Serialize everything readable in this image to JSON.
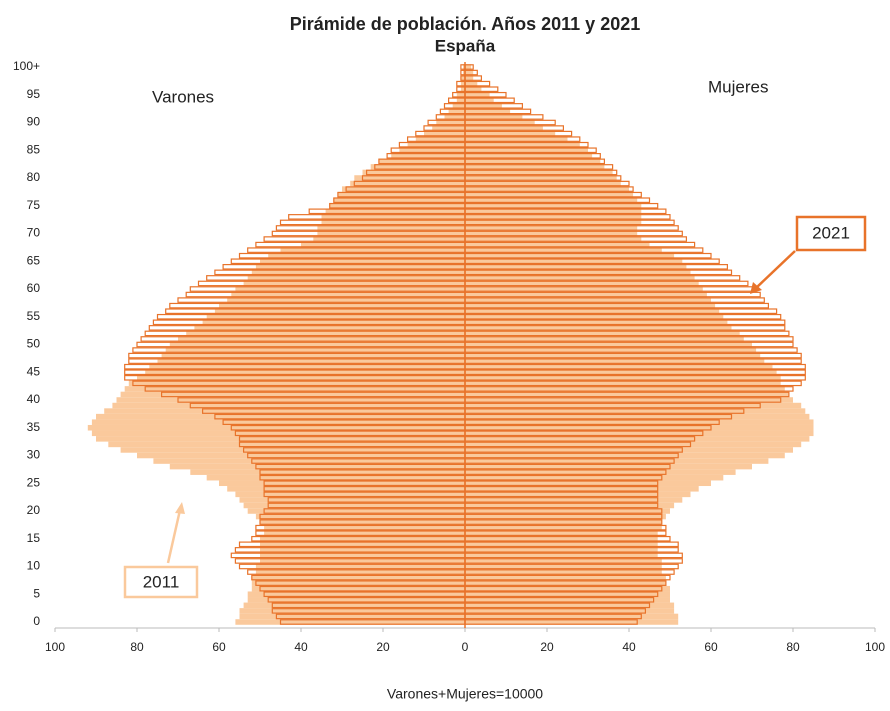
{
  "chart_data": {
    "type": "pyramid",
    "title": "Pirámide de población. Años 2011 y 2021",
    "subtitle": "España",
    "left_label": "Varones",
    "right_label": "Mujeres",
    "x_label": "Varones+Mujeres=10000",
    "categories": [
      "0",
      null,
      null,
      null,
      null,
      "5",
      null,
      null,
      null,
      null,
      "10",
      null,
      null,
      null,
      null,
      "15",
      null,
      null,
      null,
      null,
      "20",
      null,
      null,
      null,
      null,
      "25",
      null,
      null,
      null,
      null,
      "30",
      null,
      null,
      null,
      null,
      "35",
      null,
      null,
      null,
      null,
      "40",
      null,
      null,
      null,
      null,
      "45",
      null,
      null,
      null,
      null,
      "50",
      null,
      null,
      null,
      null,
      "55",
      null,
      null,
      null,
      null,
      "60",
      null,
      null,
      null,
      null,
      "65",
      null,
      null,
      null,
      null,
      "70",
      null,
      null,
      null,
      null,
      "75",
      null,
      null,
      null,
      null,
      "80",
      null,
      null,
      null,
      null,
      "85",
      null,
      null,
      null,
      null,
      "90",
      null,
      null,
      null,
      null,
      "95",
      null,
      null,
      null,
      null,
      "100+"
    ],
    "xlim": [
      0,
      100
    ],
    "xticks": [
      0,
      20,
      40,
      60,
      80,
      100
    ],
    "series": [
      {
        "name": "2011",
        "color": "#fac99c",
        "style": "filled",
        "male": [
          56,
          55,
          55,
          54,
          53,
          53,
          52,
          52,
          52,
          51,
          51,
          50,
          50,
          50,
          50,
          50,
          49,
          49,
          50,
          51,
          53,
          54,
          55,
          56,
          58,
          60,
          63,
          67,
          72,
          76,
          80,
          84,
          87,
          90,
          91,
          92,
          91,
          90,
          88,
          86,
          85,
          84,
          83,
          82,
          80,
          78,
          77,
          75,
          74,
          73,
          72,
          70,
          68,
          66,
          64,
          63,
          61,
          60,
          58,
          57,
          56,
          54,
          53,
          52,
          51,
          50,
          48,
          45,
          40,
          37,
          36,
          36,
          35,
          35,
          34,
          33,
          32,
          31,
          30,
          28,
          27,
          25,
          23,
          21,
          18,
          16,
          14,
          12,
          10,
          8,
          7,
          5,
          4,
          3,
          2,
          2,
          1,
          1,
          1,
          0.5,
          0.5
        ],
        "female": [
          52,
          52,
          51,
          51,
          50,
          50,
          50,
          49,
          49,
          48,
          48,
          48,
          47,
          47,
          47,
          47,
          47,
          48,
          48,
          49,
          50,
          51,
          53,
          55,
          57,
          60,
          63,
          66,
          70,
          74,
          78,
          80,
          82,
          84,
          85,
          85,
          85,
          84,
          83,
          82,
          80,
          79,
          78,
          77,
          77,
          76,
          75,
          73,
          72,
          71,
          70,
          68,
          67,
          65,
          64,
          63,
          62,
          61,
          60,
          59,
          58,
          57,
          56,
          55,
          54,
          53,
          51,
          48,
          45,
          43,
          42,
          42,
          43,
          43,
          43,
          43,
          42,
          41,
          40,
          38,
          37,
          36,
          34,
          33,
          31,
          30,
          28,
          25,
          22,
          19,
          17,
          14,
          11,
          9,
          7,
          6,
          4,
          3,
          2,
          2,
          1.5
        ]
      },
      {
        "name": "2021",
        "color": "#e8732a",
        "style": "outline",
        "male": [
          45,
          46,
          47,
          47,
          48,
          49,
          50,
          51,
          52,
          53,
          55,
          56,
          57,
          56,
          55,
          52,
          51,
          51,
          50,
          50,
          49,
          48,
          48,
          49,
          49,
          49,
          50,
          50,
          51,
          52,
          53,
          54,
          55,
          55,
          56,
          57,
          59,
          61,
          64,
          67,
          70,
          74,
          78,
          81,
          83,
          83,
          83,
          82,
          82,
          81,
          80,
          79,
          78,
          77,
          76,
          75,
          73,
          72,
          70,
          68,
          67,
          65,
          63,
          61,
          59,
          57,
          55,
          53,
          51,
          49,
          47,
          46,
          45,
          43,
          38,
          33,
          32,
          31,
          29,
          27,
          25,
          24,
          22,
          21,
          19,
          18,
          16,
          14,
          12,
          10,
          9,
          7,
          6,
          5,
          4,
          3,
          2,
          2,
          1,
          1,
          1
        ],
        "female": [
          42,
          43,
          44,
          45,
          46,
          47,
          48,
          49,
          50,
          51,
          52,
          53,
          53,
          52,
          52,
          50,
          49,
          49,
          48,
          48,
          48,
          47,
          47,
          47,
          47,
          47,
          48,
          49,
          50,
          51,
          52,
          53,
          55,
          56,
          58,
          60,
          62,
          65,
          68,
          72,
          77,
          79,
          80,
          82,
          83,
          83,
          83,
          82,
          82,
          81,
          80,
          80,
          79,
          78,
          78,
          77,
          76,
          74,
          73,
          72,
          71,
          69,
          67,
          65,
          64,
          62,
          60,
          58,
          56,
          54,
          53,
          52,
          51,
          50,
          49,
          47,
          45,
          43,
          41,
          40,
          38,
          37,
          36,
          34,
          33,
          32,
          30,
          28,
          26,
          24,
          22,
          19,
          16,
          14,
          12,
          10,
          8,
          6,
          4,
          3,
          2
        ]
      }
    ]
  }
}
